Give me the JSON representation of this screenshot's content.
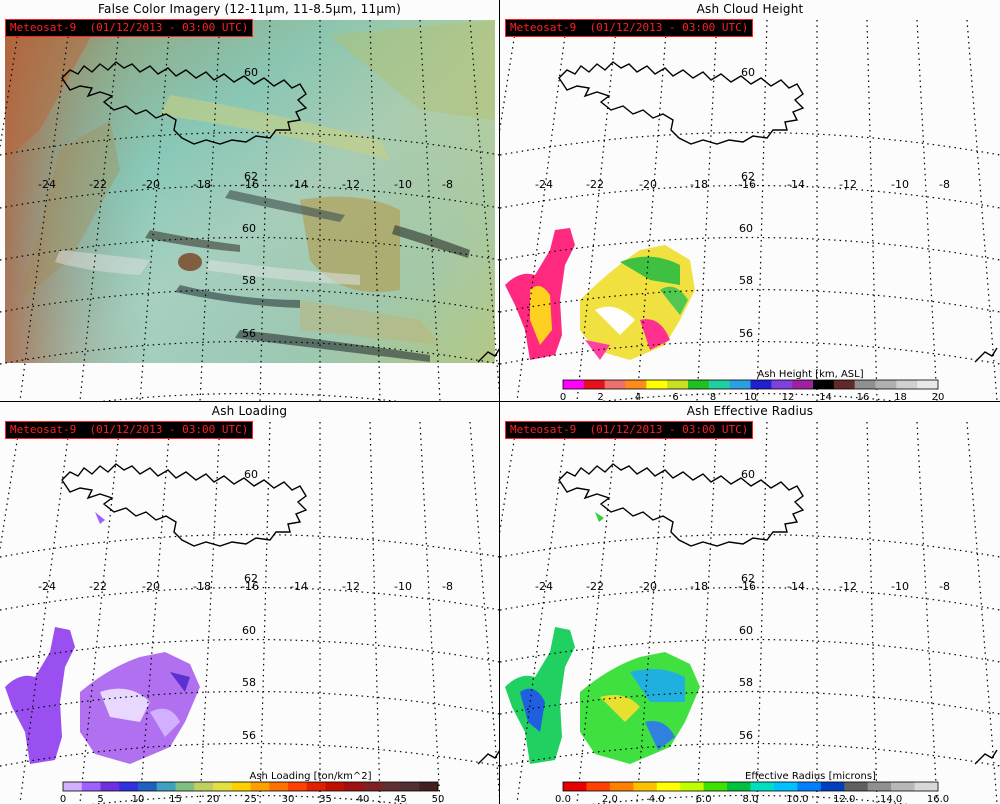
{
  "panels": [
    {
      "id": "false-color",
      "title": "False Color Imagery (12-11μm, 11-8.5μm, 11μm)",
      "satellite": "Meteosat-9  (01/12/2013 - 03:00 UTC)",
      "lon_labels": [
        "-24",
        "-22",
        "-20",
        "-18",
        "-16",
        "-14",
        "-12",
        "-10",
        "-8"
      ],
      "lat_labels": [
        "60",
        "62",
        "60",
        "58",
        "56"
      ]
    },
    {
      "id": "ash-height",
      "title": "Ash Cloud Height",
      "satellite": "Meteosat-9  (01/12/2013 - 03:00 UTC)",
      "lon_labels": [
        "-24",
        "-22",
        "-20",
        "-18",
        "-16",
        "-14",
        "-12",
        "-10",
        "-8"
      ],
      "lat_labels": [
        "60",
        "62",
        "60",
        "58",
        "56"
      ],
      "colorbar": {
        "title": "Ash Height [km, ASL]",
        "ticks": [
          "0",
          "2",
          "4",
          "6",
          "8",
          "10",
          "12",
          "14",
          "16",
          "18",
          "20"
        ],
        "colors": [
          "#ff00ff",
          "#e8101a",
          "#f07070",
          "#ff8c1a",
          "#ffff00",
          "#c8e020",
          "#20c020",
          "#20d0a0",
          "#2aa0e0",
          "#2020d0",
          "#8040e0",
          "#a020a0",
          "#000000",
          "#602a2a",
          "#909090",
          "#b0b0b0",
          "#d0d0d0",
          "#e8e8e8"
        ]
      }
    },
    {
      "id": "ash-loading",
      "title": "Ash Loading",
      "satellite": "Meteosat-9  (01/12/2013 - 03:00 UTC)",
      "lon_labels": [
        "-24",
        "-22",
        "-20",
        "-18",
        "-16",
        "-14",
        "-12",
        "-10",
        "-8"
      ],
      "lat_labels": [
        "60",
        "62",
        "60",
        "58",
        "56"
      ],
      "colorbar": {
        "title": "Ash Loading [ton/km^2]",
        "ticks": [
          "0",
          "5",
          "10",
          "15",
          "20",
          "25",
          "30",
          "35",
          "40",
          "45",
          "50"
        ],
        "colors": [
          "#d0b0ff",
          "#a060ff",
          "#7030e0",
          "#3030e0",
          "#2060c0",
          "#40a0c0",
          "#80c080",
          "#c0d060",
          "#e0e040",
          "#ffd000",
          "#ffa000",
          "#ff7000",
          "#ff4000",
          "#e02000",
          "#c01000",
          "#a01010",
          "#802020",
          "#603030",
          "#503030",
          "#402020"
        ]
      }
    },
    {
      "id": "ash-radius",
      "title": "Ash Effective Radius",
      "satellite": "Meteosat-9  (01/12/2013 - 03:00 UTC)",
      "lon_labels": [
        "-24",
        "-22",
        "-20",
        "-18",
        "-16",
        "-14",
        "-12",
        "-10",
        "-8"
      ],
      "lat_labels": [
        "60",
        "62",
        "60",
        "58",
        "56"
      ],
      "colorbar": {
        "title": "Effective Radius [microns]",
        "ticks": [
          "0.0",
          "2.0",
          "4.0",
          "6.0",
          "8.0",
          "10.0",
          "12.0",
          "14.0",
          "16.0"
        ],
        "colors": [
          "#e80000",
          "#ff4000",
          "#ff8000",
          "#ffc000",
          "#ffff00",
          "#c0ff00",
          "#40e000",
          "#00c040",
          "#00e0c0",
          "#00c0ff",
          "#0080ff",
          "#0040c0",
          "#606060",
          "#909090",
          "#b8b8b8",
          "#d8d8d8"
        ]
      }
    }
  ]
}
